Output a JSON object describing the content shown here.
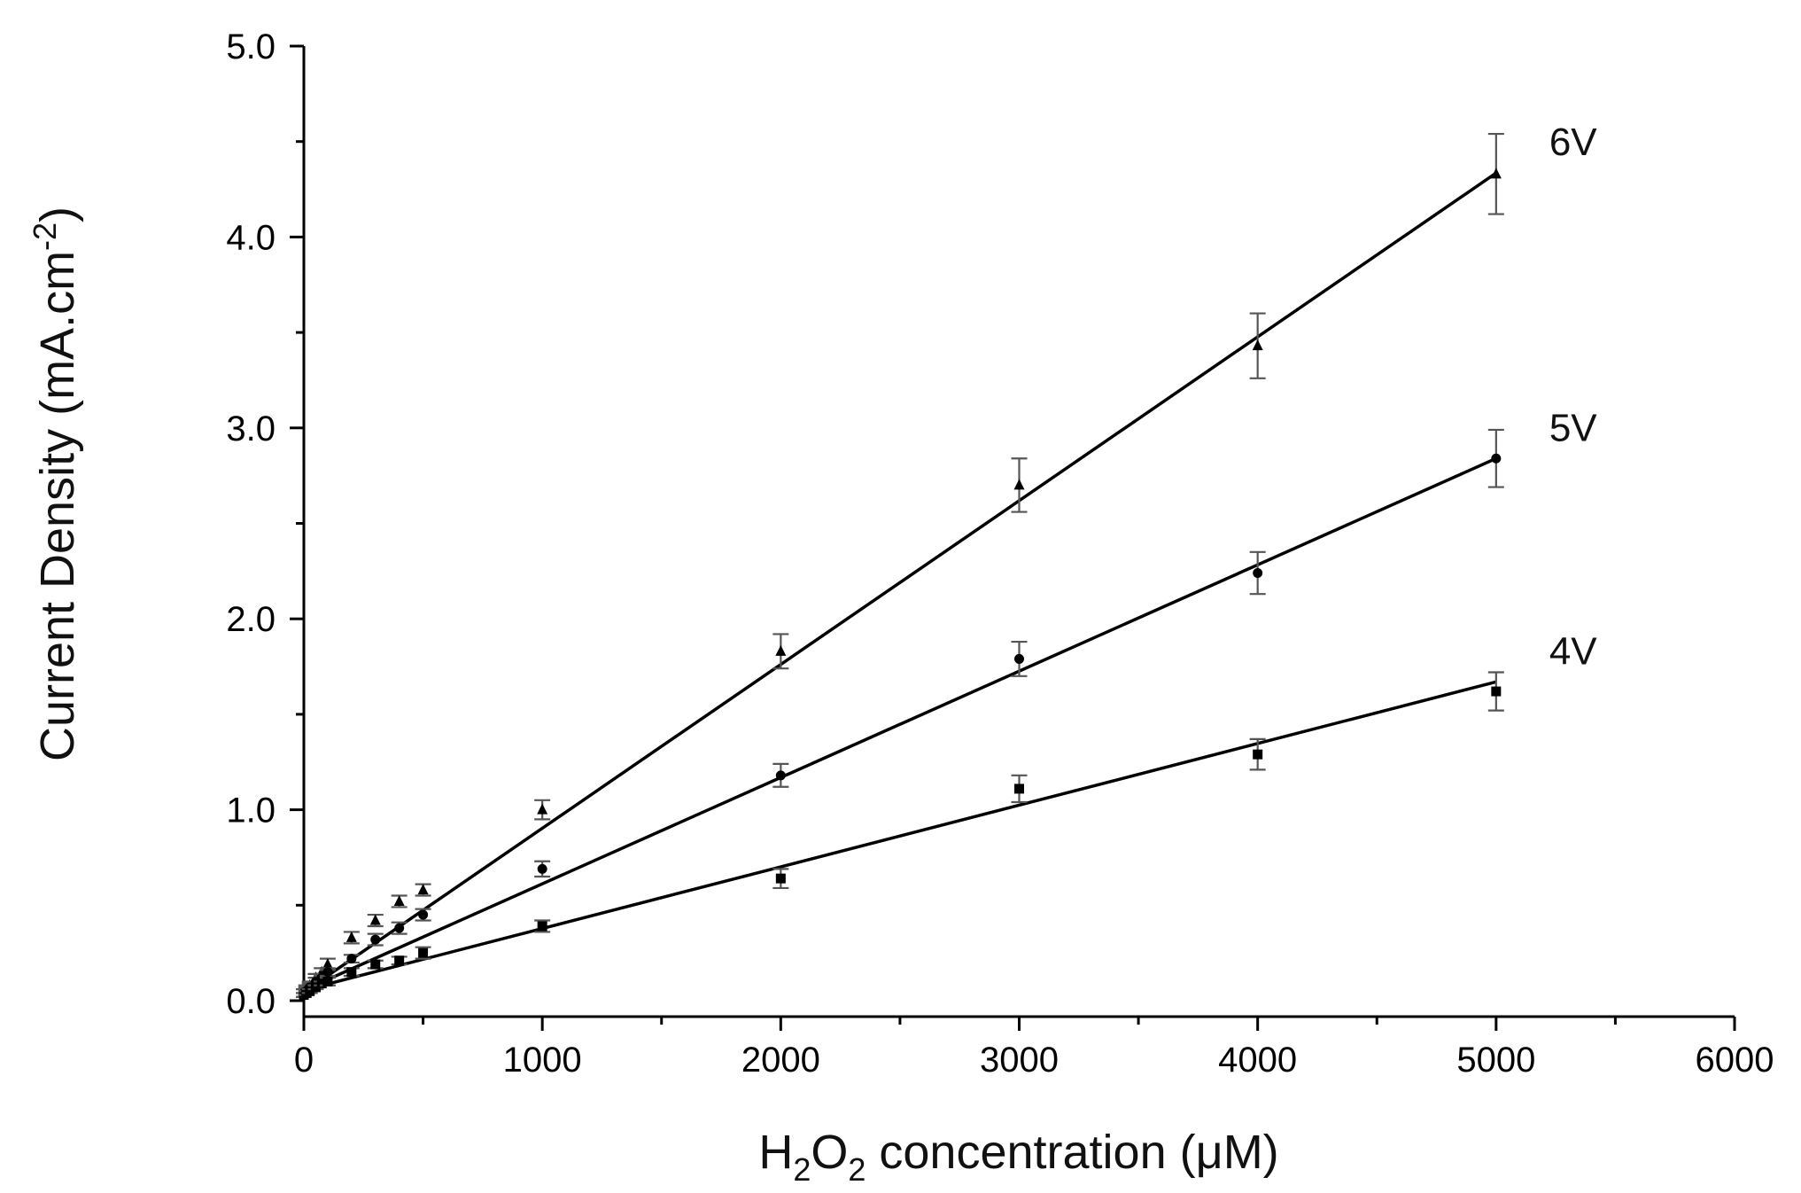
{
  "chart_data": {
    "type": "scatter",
    "title": "",
    "xlabel": {
      "pre": "H",
      "sub1": "2",
      "mid": "O",
      "sub2": "2",
      "post": " concentration (μM)"
    },
    "ylabel": {
      "pre": "Current Density (mA.cm",
      "sup": "-2",
      "post": ")"
    },
    "xlim": [
      0,
      6000
    ],
    "ylim": [
      0,
      5.0
    ],
    "x_major_ticks": [
      0,
      1000,
      2000,
      3000,
      4000,
      5000,
      6000
    ],
    "x_tick_labels": [
      "0",
      "1000",
      "2000",
      "3000",
      "4000",
      "5000",
      "6000"
    ],
    "x_minor_ticks": [
      500,
      1500,
      2500,
      3500,
      4500,
      5500
    ],
    "y_major_ticks": [
      0,
      1,
      2,
      3,
      4,
      5
    ],
    "y_tick_labels": [
      "0.0",
      "1.0",
      "2.0",
      "3.0",
      "4.0",
      "5.0"
    ],
    "y_minor_ticks": [
      0.5,
      1.5,
      2.5,
      3.5,
      4.5
    ],
    "grid": false,
    "series": [
      {
        "name": "6V",
        "marker": "triangle",
        "x": [
          0,
          10,
          25,
          50,
          75,
          100,
          200,
          300,
          400,
          500,
          1000,
          2000,
          3000,
          4000,
          5000
        ],
        "y": [
          0.04,
          0.06,
          0.08,
          0.12,
          0.15,
          0.19,
          0.33,
          0.42,
          0.52,
          0.58,
          1.0,
          1.83,
          2.7,
          3.43,
          4.33
        ],
        "err": [
          0.02,
          0.02,
          0.02,
          0.02,
          0.02,
          0.03,
          0.03,
          0.03,
          0.03,
          0.03,
          0.05,
          0.09,
          0.14,
          0.17,
          0.21
        ],
        "fit": {
          "slope": 0.000858,
          "intercept": 0.045
        }
      },
      {
        "name": "5V",
        "marker": "circle",
        "x": [
          0,
          10,
          25,
          50,
          75,
          100,
          200,
          300,
          400,
          500,
          1000,
          2000,
          3000,
          4000,
          5000
        ],
        "y": [
          0.04,
          0.05,
          0.07,
          0.1,
          0.12,
          0.15,
          0.22,
          0.32,
          0.38,
          0.45,
          0.69,
          1.18,
          1.79,
          2.24,
          2.84
        ],
        "err": [
          0.02,
          0.02,
          0.02,
          0.02,
          0.02,
          0.02,
          0.02,
          0.03,
          0.03,
          0.03,
          0.04,
          0.06,
          0.09,
          0.11,
          0.15
        ],
        "fit": {
          "slope": 0.000557,
          "intercept": 0.055
        }
      },
      {
        "name": "4V",
        "marker": "square",
        "x": [
          0,
          10,
          25,
          50,
          75,
          100,
          200,
          300,
          400,
          500,
          1000,
          2000,
          3000,
          4000,
          5000
        ],
        "y": [
          0.03,
          0.04,
          0.05,
          0.07,
          0.09,
          0.1,
          0.15,
          0.19,
          0.21,
          0.25,
          0.39,
          0.64,
          1.11,
          1.29,
          1.62
        ],
        "err": [
          0.01,
          0.01,
          0.01,
          0.01,
          0.01,
          0.02,
          0.02,
          0.02,
          0.02,
          0.03,
          0.03,
          0.05,
          0.07,
          0.08,
          0.1
        ],
        "fit": {
          "slope": 0.000323,
          "intercept": 0.055
        }
      }
    ]
  }
}
